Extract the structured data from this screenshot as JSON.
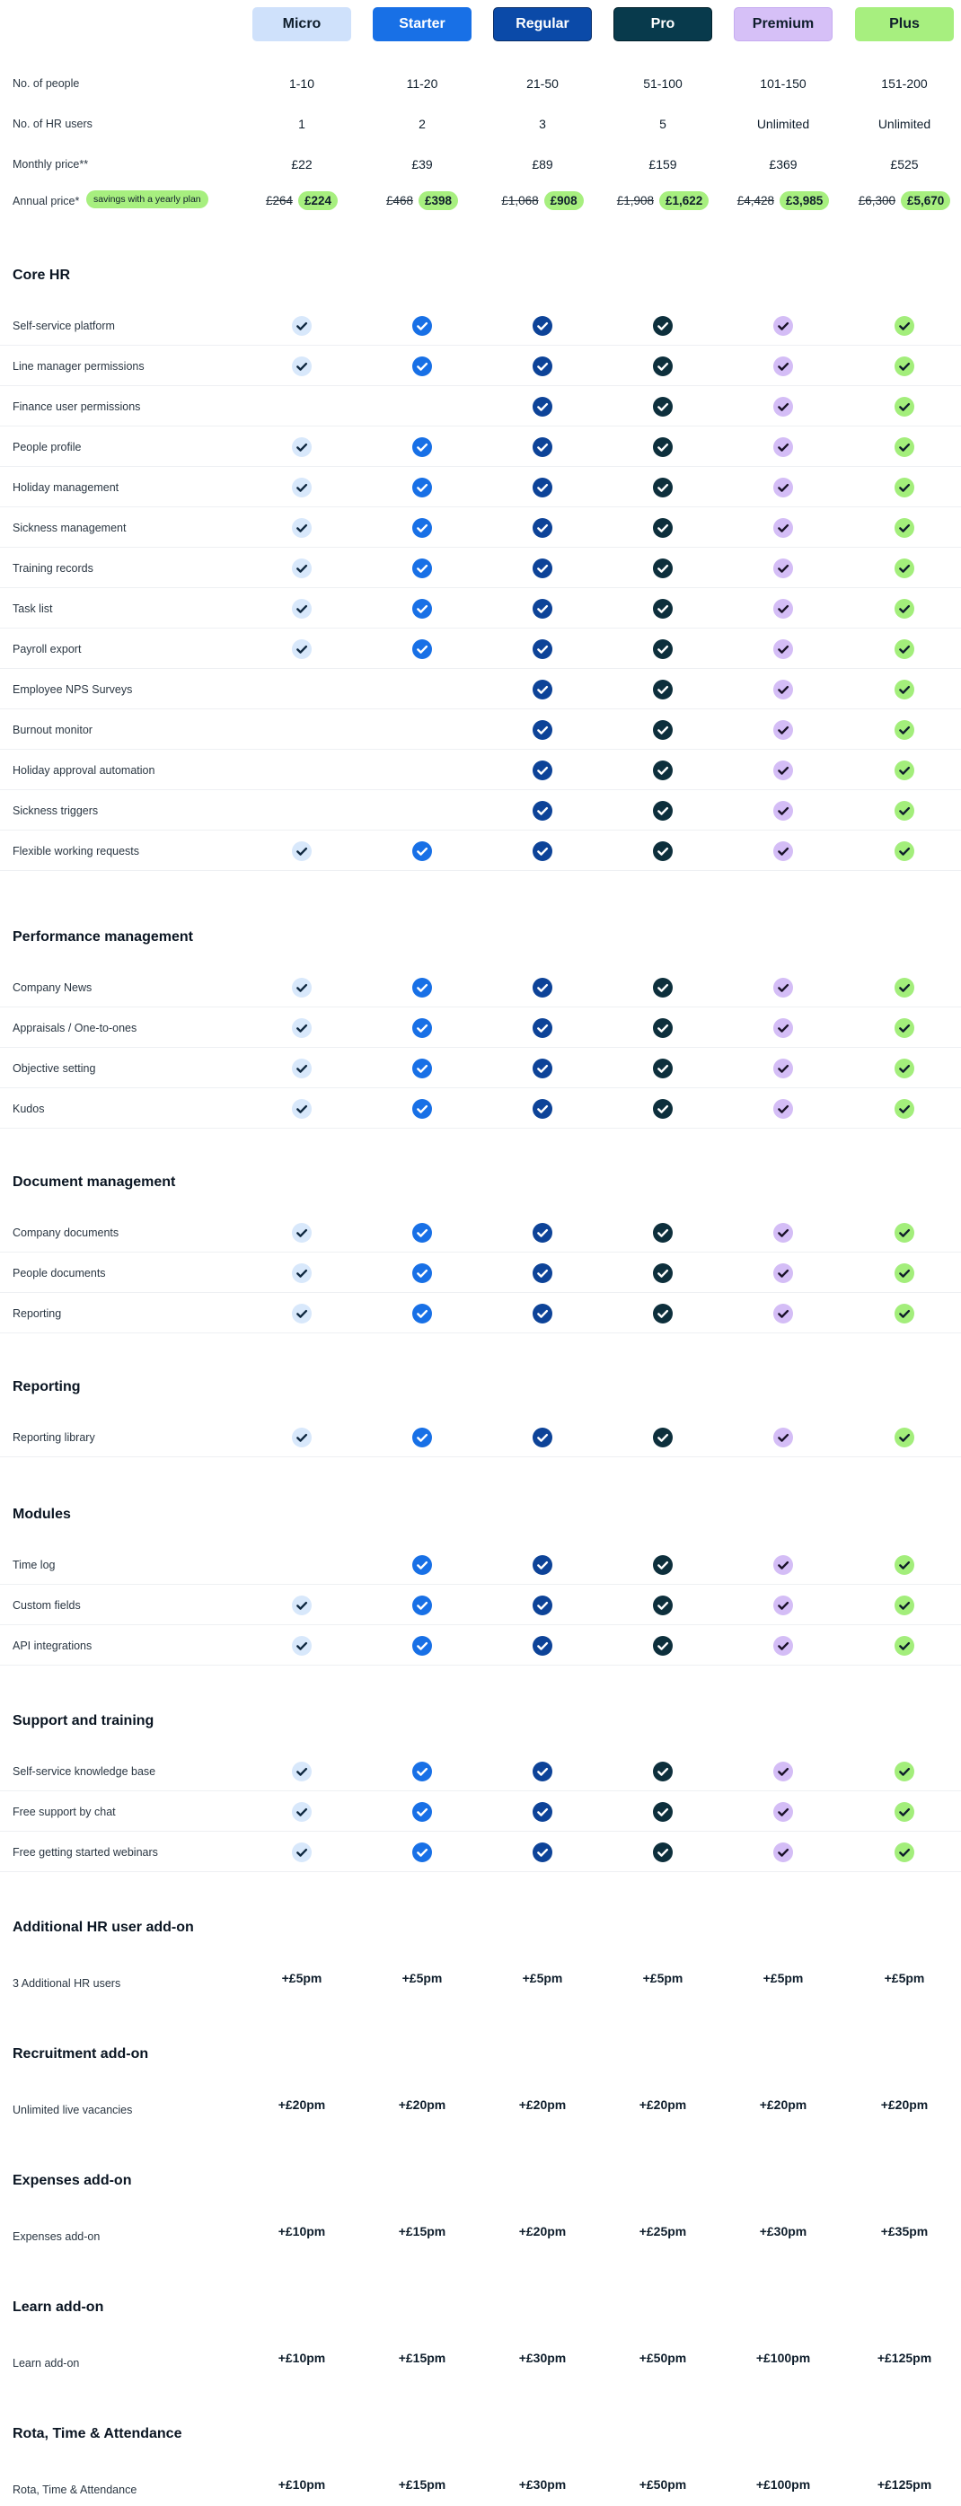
{
  "plans": [
    {
      "name": "Micro",
      "bg": "#cfe1fb",
      "fg": "#0f1e2c",
      "border": "#cfe1fb",
      "check_bg": "#d8e8fb",
      "check_fg": "#0f2840"
    },
    {
      "name": "Starter",
      "bg": "#1870e6",
      "fg": "#ffffff",
      "border": "#1870e6",
      "check_bg": "#1870e6",
      "check_fg": "#ffffff"
    },
    {
      "name": "Regular",
      "bg": "#0b4aa8",
      "fg": "#ffffff",
      "border": "#0a2e68",
      "check_bg": "#0d4398",
      "check_fg": "#ffffff"
    },
    {
      "name": "Pro",
      "bg": "#083a4c",
      "fg": "#ffffff",
      "border": "#02202b",
      "check_bg": "#0d2f3c",
      "check_fg": "#ffffff"
    },
    {
      "name": "Premium",
      "bg": "#d6c0f7",
      "fg": "#0f1e2c",
      "border": "#c5abf0",
      "check_bg": "#d4bdf6",
      "check_fg": "#1a1228"
    },
    {
      "name": "Plus",
      "bg": "#a7ef7f",
      "fg": "#0f1e2c",
      "border": "#a7ef7f",
      "check_bg": "#a3ee7b",
      "check_fg": "#0f1e2c"
    }
  ],
  "info_rows": [
    {
      "label": "No. of people",
      "values": [
        "1-10",
        "11-20",
        "21-50",
        "51-100",
        "101-150",
        "151-200"
      ]
    },
    {
      "label": "No. of HR users",
      "values": [
        "1",
        "2",
        "3",
        "5",
        "Unlimited",
        "Unlimited"
      ]
    },
    {
      "label": "Monthly price**",
      "values": [
        "£22",
        "£39",
        "£89",
        "£159",
        "£369",
        "£525"
      ]
    }
  ],
  "annual": {
    "label": "Annual price*",
    "savings": "savings with a yearly plan",
    "old": [
      "£264",
      "£468",
      "£1,068",
      "£1,908",
      "£4,428",
      "£6,300"
    ],
    "new": [
      "£224",
      "£398",
      "£908",
      "£1,622",
      "£3,985",
      "£5,670"
    ]
  },
  "sections": [
    {
      "title": "Core HR",
      "rows": [
        {
          "label": "Self-service platform",
          "checks": [
            1,
            1,
            1,
            1,
            1,
            1
          ]
        },
        {
          "label": "Line manager permissions",
          "checks": [
            1,
            1,
            1,
            1,
            1,
            1
          ]
        },
        {
          "label": "Finance user permissions",
          "checks": [
            0,
            0,
            1,
            1,
            1,
            1
          ]
        },
        {
          "label": "People profile",
          "checks": [
            1,
            1,
            1,
            1,
            1,
            1
          ]
        },
        {
          "label": "Holiday management",
          "checks": [
            1,
            1,
            1,
            1,
            1,
            1
          ]
        },
        {
          "label": "Sickness management",
          "checks": [
            1,
            1,
            1,
            1,
            1,
            1
          ]
        },
        {
          "label": "Training records",
          "checks": [
            1,
            1,
            1,
            1,
            1,
            1
          ]
        },
        {
          "label": "Task list",
          "checks": [
            1,
            1,
            1,
            1,
            1,
            1
          ]
        },
        {
          "label": "Payroll export",
          "checks": [
            1,
            1,
            1,
            1,
            1,
            1
          ]
        },
        {
          "label": "Employee NPS Surveys",
          "checks": [
            0,
            0,
            1,
            1,
            1,
            1
          ]
        },
        {
          "label": "Burnout monitor",
          "checks": [
            0,
            0,
            1,
            1,
            1,
            1
          ]
        },
        {
          "label": "Holiday approval automation",
          "checks": [
            0,
            0,
            1,
            1,
            1,
            1
          ]
        },
        {
          "label": "Sickness triggers",
          "checks": [
            0,
            0,
            1,
            1,
            1,
            1
          ]
        },
        {
          "label": "Flexible working requests",
          "checks": [
            1,
            1,
            1,
            1,
            1,
            1
          ]
        }
      ]
    },
    {
      "title": "Performance management",
      "rows": [
        {
          "label": "Company News",
          "checks": [
            1,
            1,
            1,
            1,
            1,
            1
          ]
        },
        {
          "label": "Appraisals / One-to-ones",
          "checks": [
            1,
            1,
            1,
            1,
            1,
            1
          ]
        },
        {
          "label": "Objective setting",
          "checks": [
            1,
            1,
            1,
            1,
            1,
            1
          ]
        },
        {
          "label": "Kudos",
          "checks": [
            1,
            1,
            1,
            1,
            1,
            1
          ]
        }
      ]
    },
    {
      "title": "Document management",
      "rows": [
        {
          "label": "Company documents",
          "checks": [
            1,
            1,
            1,
            1,
            1,
            1
          ]
        },
        {
          "label": "People documents",
          "checks": [
            1,
            1,
            1,
            1,
            1,
            1
          ]
        },
        {
          "label": "Reporting",
          "checks": [
            1,
            1,
            1,
            1,
            1,
            1
          ]
        }
      ]
    },
    {
      "title": "Reporting",
      "rows": [
        {
          "label": "Reporting library",
          "checks": [
            1,
            1,
            1,
            1,
            1,
            1
          ]
        }
      ]
    },
    {
      "title": "Modules",
      "rows": [
        {
          "label": "Time log",
          "checks": [
            0,
            1,
            1,
            1,
            1,
            1
          ]
        },
        {
          "label": "Custom fields",
          "checks": [
            1,
            1,
            1,
            1,
            1,
            1
          ]
        },
        {
          "label": "API integrations",
          "checks": [
            1,
            1,
            1,
            1,
            1,
            1
          ]
        }
      ]
    },
    {
      "title": "Support and training",
      "rows": [
        {
          "label": "Self-service knowledge base",
          "checks": [
            1,
            1,
            1,
            1,
            1,
            1
          ]
        },
        {
          "label": "Free support by chat",
          "checks": [
            1,
            1,
            1,
            1,
            1,
            1
          ]
        },
        {
          "label": "Free getting started webinars",
          "checks": [
            1,
            1,
            1,
            1,
            1,
            1
          ]
        }
      ]
    },
    {
      "title": "Additional HR user add-on",
      "rows": [
        {
          "label": "3 Additional HR users",
          "prices": [
            "+£5pm",
            "+£5pm",
            "+£5pm",
            "+£5pm",
            "+£5pm",
            "+£5pm"
          ]
        }
      ]
    },
    {
      "title": "Recruitment add-on",
      "rows": [
        {
          "label": "Unlimited live vacancies",
          "prices": [
            "+£20pm",
            "+£20pm",
            "+£20pm",
            "+£20pm",
            "+£20pm",
            "+£20pm"
          ]
        }
      ]
    },
    {
      "title": "Expenses add-on",
      "rows": [
        {
          "label": "Expenses add-on",
          "prices": [
            "+£10pm",
            "+£15pm",
            "+£20pm",
            "+£25pm",
            "+£30pm",
            "+£35pm"
          ]
        }
      ]
    },
    {
      "title": "Learn add-on",
      "rows": [
        {
          "label": "Learn add-on",
          "prices": [
            "+£10pm",
            "+£15pm",
            "+£30pm",
            "+£50pm",
            "+£100pm",
            "+£125pm"
          ]
        }
      ]
    },
    {
      "title": "Rota, Time & Attendance",
      "rows": [
        {
          "label": "Rota, Time & Attendance",
          "prices": [
            "+£10pm",
            "+£15pm",
            "+£30pm",
            "+£50pm",
            "+£100pm",
            "+£125pm"
          ]
        }
      ]
    }
  ]
}
